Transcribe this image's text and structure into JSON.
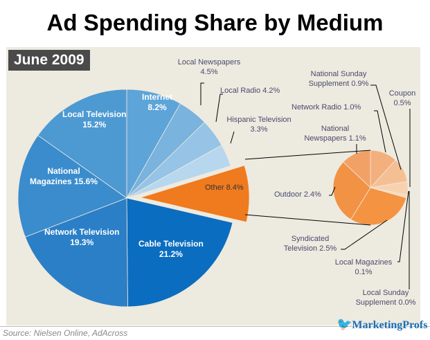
{
  "chart_data": {
    "type": "pie",
    "title": "Ad Spending Share by Medium",
    "badge": "June 2009",
    "source": "Source: Nielsen Online, AdAcross",
    "logo": "MarketingProfs",
    "main": [
      {
        "name": "Internet",
        "value": 8.2,
        "label": "Internet",
        "pct": "8.2%",
        "color": "#5da4d8"
      },
      {
        "name": "Local Newspapers",
        "value": 4.5,
        "label": "Local Newspapers",
        "pct": "4.5%",
        "color": "#79b3de"
      },
      {
        "name": "Local Radio",
        "value": 4.2,
        "label": "Local Radio",
        "pct": "4.2%",
        "color": "#95c4e6"
      },
      {
        "name": "Hispanic Television",
        "value": 3.3,
        "label": "Hispanic Television",
        "pct": "3.3%",
        "color": "#b6d7ee"
      },
      {
        "name": "Other",
        "value": 8.4,
        "label": "Other",
        "pct": "8.4%",
        "color": "#f07a1e"
      },
      {
        "name": "Cable Television",
        "value": 21.2,
        "label": "Cable Television",
        "pct": "21.2%",
        "color": "#0b6dbf"
      },
      {
        "name": "Network Television",
        "value": 19.3,
        "label": "Network Television",
        "pct": "19.3%",
        "color": "#2a7fc7"
      },
      {
        "name": "National Magazines",
        "value": 15.6,
        "label": "National Magazines",
        "pct": "15.6%",
        "color": "#3a8ccd"
      },
      {
        "name": "Local Television",
        "value": 15.2,
        "label": "Local Television",
        "pct": "15.2%",
        "color": "#4d99d2"
      }
    ],
    "other": [
      {
        "name": "Network Radio",
        "value": 1.0,
        "label": "Network Radio",
        "pct": "1.0%",
        "color": "#f3b07c"
      },
      {
        "name": "National Sunday Supplement",
        "value": 0.9,
        "label": "National Sunday Supplement",
        "pct": "0.9%",
        "color": "#f5bf94"
      },
      {
        "name": "Coupon",
        "value": 0.5,
        "label": "Coupon",
        "pct": "0.5%",
        "color": "#f8d2b0"
      },
      {
        "name": "Local Magazines",
        "value": 0.1,
        "label": "Local Magazines",
        "pct": "0.1%",
        "color": "#f8d9bd"
      },
      {
        "name": "Local Sunday Supplement",
        "value": 0.0,
        "label": "Local Sunday Supplement",
        "pct": "0.0%",
        "color": "#f8dcc2"
      },
      {
        "name": "Syndicated Television",
        "value": 2.5,
        "label": "Syndicated Television",
        "pct": "2.5%",
        "color": "#f49341"
      },
      {
        "name": "Outdoor",
        "value": 2.4,
        "label": "Outdoor",
        "pct": "2.4%",
        "color": "#f29244"
      },
      {
        "name": "National Newspapers",
        "value": 1.1,
        "label": "National Newspapers",
        "pct": "1.1%",
        "color": "#f2a166"
      }
    ]
  }
}
